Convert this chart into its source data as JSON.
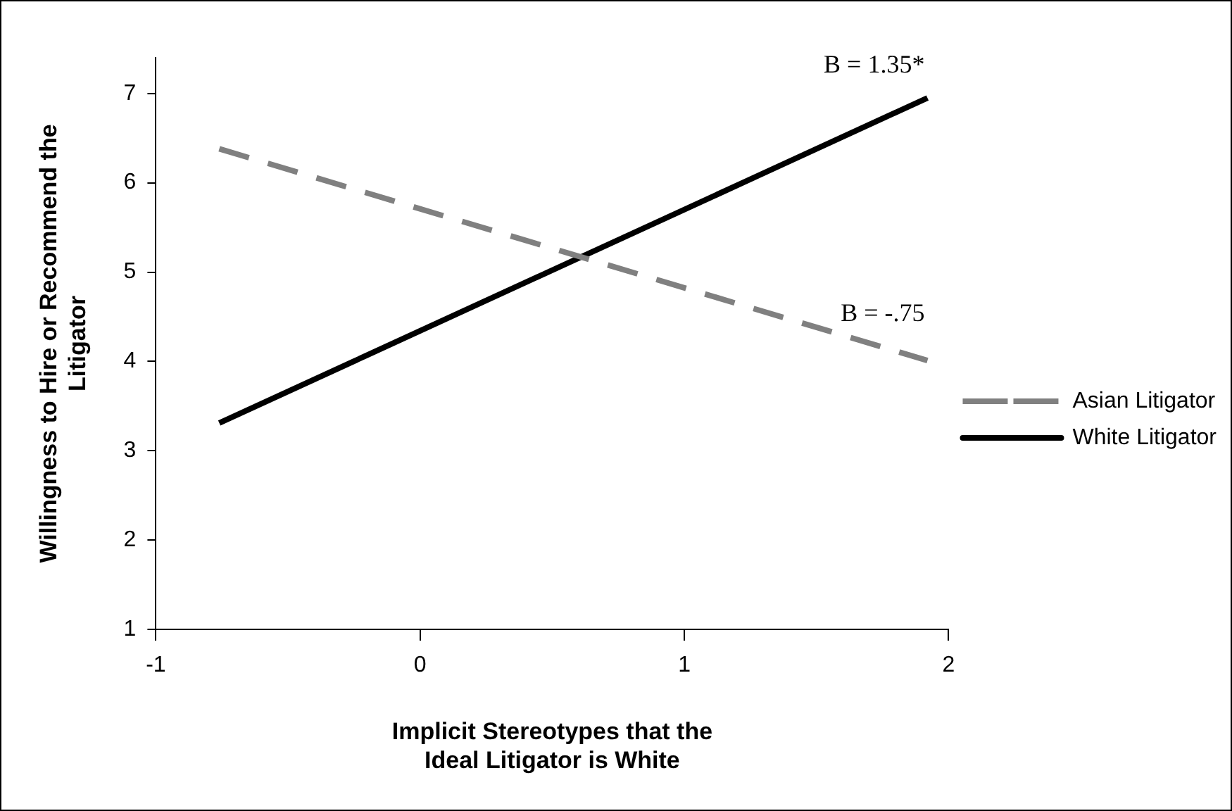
{
  "chart_data": {
    "type": "line",
    "xlabel": "Implicit Stereotypes that the Ideal Litigator is White",
    "ylabel": "Willingness to Hire or Recommend the Litigator",
    "x": [
      -0.76,
      1.92
    ],
    "series": [
      {
        "name": "Asian Litigator",
        "color": "#808080",
        "values": [
          6.38,
          4.01
        ],
        "line_style": "dashed"
      },
      {
        "name": "White Litigator",
        "color": "#000000",
        "values": [
          3.31,
          6.95
        ],
        "line_style": "solid"
      }
    ],
    "xlim": [
      -1,
      2
    ],
    "xticks": [
      -1,
      0,
      1,
      2
    ],
    "ylim": [
      1,
      7.4
    ],
    "yticks": [
      1,
      2,
      3,
      4,
      5,
      6,
      7
    ],
    "annotations": [
      {
        "text": "B = 1.35*",
        "x": 1.92,
        "y": 6.95
      },
      {
        "text": "B = -.75",
        "x": 1.92,
        "y": 4.01
      }
    ],
    "grid": false,
    "legend": "right",
    "marker": "none"
  }
}
